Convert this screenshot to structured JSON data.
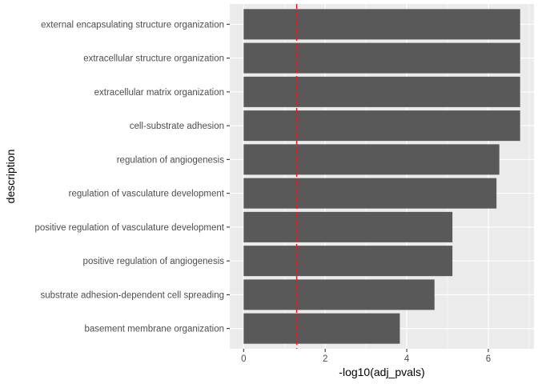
{
  "chart_data": {
    "type": "bar",
    "orientation": "horizontal",
    "categories": [
      "external encapsulating structure organization",
      "extracellular structure organization",
      "extracellular matrix organization",
      "cell-substrate adhesion",
      "regulation of angiogenesis",
      "regulation of vasculature development",
      "positive regulation of vasculature development",
      "positive regulation of angiogenesis",
      "substrate adhesion-dependent cell spreading",
      "basement membrane organization"
    ],
    "values": [
      6.78,
      6.78,
      6.78,
      6.78,
      6.27,
      6.2,
      5.12,
      5.12,
      4.68,
      3.83
    ],
    "xlabel": "-log10(adj_pvals)",
    "ylabel": "description",
    "xlim": [
      -0.34,
      7.12
    ],
    "xticks": [
      0,
      2,
      4,
      6
    ],
    "reference_line": {
      "x": 1.301,
      "style": "dashed",
      "color": "#e41a1c"
    },
    "grid": true,
    "bar_color": "#595959",
    "panel_background": "#ebebeb",
    "grid_color": "#ffffff"
  }
}
